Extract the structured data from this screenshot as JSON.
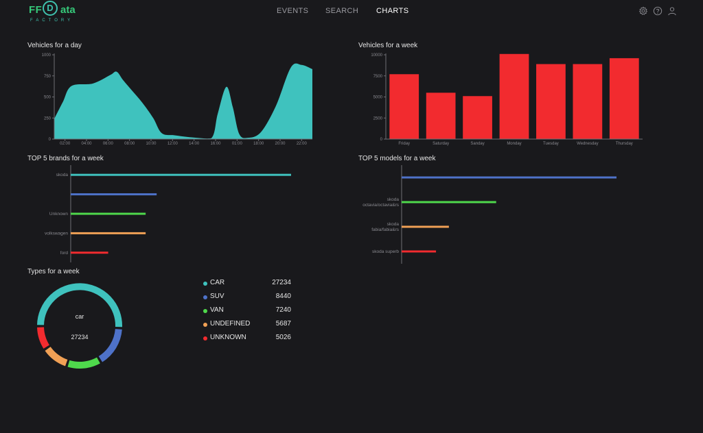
{
  "app": {
    "logo_ff": "FF",
    "logo_d": "D",
    "logo_ata": "ata",
    "logo_sub": "FACTORY",
    "nav": [
      "EVENTS",
      "SEARCH",
      "CHARTS"
    ],
    "active_nav": "CHARTS",
    "icons": [
      "gear-icon",
      "help-icon",
      "user-icon"
    ],
    "colors": {
      "background": "#19191c",
      "teal": "#3fc2be",
      "red": "#f22b2f",
      "blue": "#4e72c9",
      "green": "#4fd94c",
      "orange": "#f0a055",
      "darkred": "#e23237"
    }
  },
  "panels": {
    "day_title": "Vehicles for a day",
    "week_title": "Vehicles for a week",
    "brands_title": "TOP 5 brands for a week",
    "models_title": "TOP 5 models for a week",
    "types_title": "Types for a week"
  },
  "chart_data": [
    {
      "type": "area",
      "title": "Vehicles for a day",
      "x": [
        "02:00",
        "04:00",
        "06:00",
        "08:00",
        "10:00",
        "12:00",
        "14:00",
        "16:00",
        "01:00",
        "18:00",
        "20:00",
        "22:00"
      ],
      "y_ticks": [
        0,
        250,
        500,
        750,
        1000
      ],
      "ylim": [
        0,
        1000
      ],
      "points": [
        [
          0,
          240
        ],
        [
          0.4,
          440
        ],
        [
          0.8,
          630
        ],
        [
          1.8,
          660
        ],
        [
          2.6,
          760
        ],
        [
          2.9,
          800
        ],
        [
          3.2,
          700
        ],
        [
          3.6,
          580
        ],
        [
          4.1,
          430
        ],
        [
          4.6,
          250
        ],
        [
          5.0,
          70
        ],
        [
          5.6,
          45
        ],
        [
          6.4,
          20
        ],
        [
          7.3,
          10
        ],
        [
          7.6,
          300
        ],
        [
          8.0,
          620
        ],
        [
          8.3,
          380
        ],
        [
          8.6,
          60
        ],
        [
          9.0,
          15
        ],
        [
          9.6,
          80
        ],
        [
          10.3,
          390
        ],
        [
          11.0,
          850
        ],
        [
          11.5,
          880
        ],
        [
          12.0,
          830
        ]
      ],
      "color": "#3fc2be"
    },
    {
      "type": "bar",
      "title": "Vehicles for a week",
      "categories": [
        "Friday",
        "Saturday",
        "Sanday",
        "Monday",
        "Tuesday",
        "Wednesday",
        "Thursday"
      ],
      "values": [
        7700,
        5500,
        5100,
        10100,
        8900,
        8900,
        9600
      ],
      "y_ticks": [
        0,
        2500,
        5000,
        7500,
        10000
      ],
      "ylim": [
        0,
        10000
      ],
      "color": "#f22b2f"
    },
    {
      "type": "bar",
      "orientation": "horizontal",
      "title": "TOP 5 brands for a week",
      "categories": [
        "skoda",
        "",
        "Unknown",
        "volkswagen",
        "ford"
      ],
      "values": [
        100,
        39,
        34,
        34,
        17
      ],
      "colors": [
        "#3fc2be",
        "#4e72c9",
        "#4fd94c",
        "#f0a055",
        "#f22b2f"
      ]
    },
    {
      "type": "bar",
      "orientation": "horizontal",
      "title": "TOP 5 models for a week",
      "categories": [
        [
          ""
        ],
        [
          "skoda",
          "octavia/octavia&rs"
        ],
        [
          "skoda",
          "fabia/fabia&rs"
        ],
        [
          "skoda superb"
        ]
      ],
      "values": [
        100,
        44,
        22,
        16
      ],
      "colors": [
        "#4e72c9",
        "#4fd94c",
        "#f0a055",
        "#f22b2f"
      ]
    },
    {
      "type": "pie",
      "title": "Types for a week",
      "center_label": "car",
      "center_value": "27234",
      "categories": [
        "CAR",
        "SUV",
        "VAN",
        "UNDEFINED",
        "UNKNOWN"
      ],
      "values": [
        27234,
        8440,
        7240,
        5687,
        5026
      ],
      "value_labels": [
        "27234",
        "8440",
        "7240",
        "5687",
        "5026"
      ],
      "colors": [
        "#3fc2be",
        "#4e72c9",
        "#4fd94c",
        "#f0a055",
        "#f22b2f"
      ]
    }
  ]
}
